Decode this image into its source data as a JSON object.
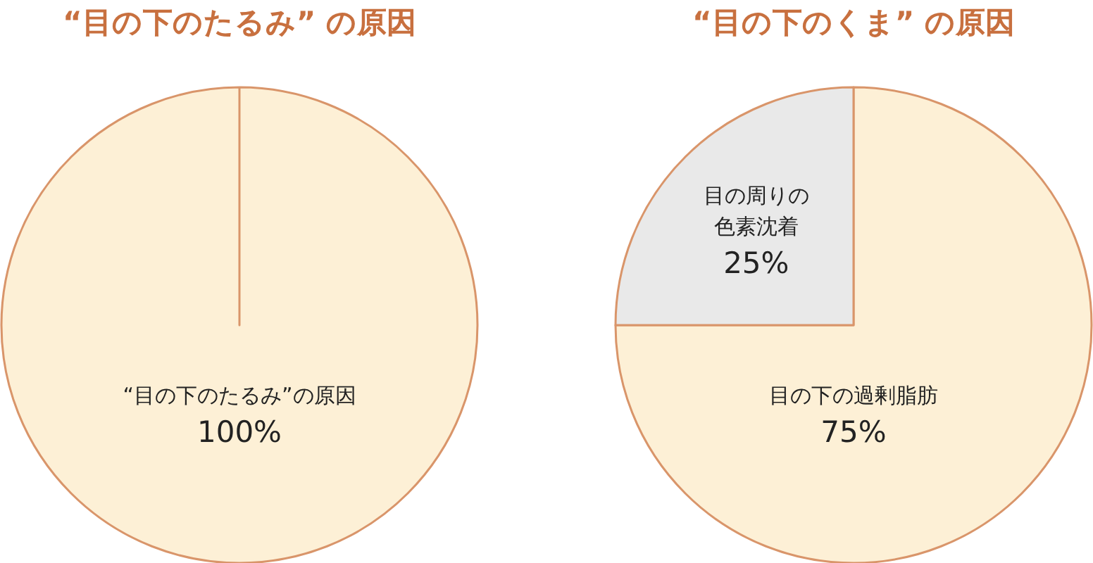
{
  "chart_data": [
    {
      "type": "pie",
      "title": "“目の下のたるみ” の原因",
      "categories": [
        "“目の下のたるみ”の原因"
      ],
      "values": [
        100
      ],
      "colors": [
        "#fdf0d6"
      ],
      "value_labels": [
        "100%"
      ]
    },
    {
      "type": "pie",
      "title": "“目の下のくま” の原因",
      "categories": [
        "目の下の過剰脂肪",
        "目の周りの色素沈着"
      ],
      "values": [
        75,
        25
      ],
      "colors": [
        "#fdf0d6",
        "#e9e9e9"
      ],
      "value_labels": [
        "75%",
        "25%"
      ]
    }
  ]
}
